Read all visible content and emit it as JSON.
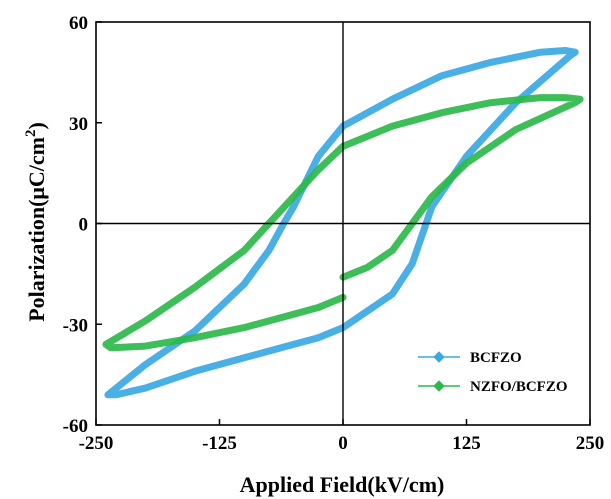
{
  "chart_data": {
    "type": "line",
    "title": "",
    "xlabel": "Applied Field(kV/cm)",
    "ylabel_main": "Polarization",
    "ylabel_unit_open": "(μC/cm",
    "ylabel_unit_sup": "2",
    "ylabel_unit_close": ")",
    "xlim": [
      -250,
      250
    ],
    "ylim": [
      -60,
      60
    ],
    "xticks": [
      -250,
      -125,
      0,
      125,
      250
    ],
    "yticks": [
      -60,
      -30,
      0,
      30,
      60
    ],
    "grid": false,
    "zero_lines": true,
    "legend_position": "lower-right",
    "series": [
      {
        "name": "BCFZO",
        "color": "#3aa8e2",
        "x": [
          0,
          25,
          50,
          70,
          90,
          125,
          175,
          230,
          235,
          225,
          200,
          150,
          100,
          50,
          25,
          0,
          -25,
          -50,
          -60,
          -75,
          -100,
          -150,
          -200,
          -238,
          -230,
          -200,
          -150,
          -100,
          -50,
          -25,
          0
        ],
        "y": [
          -31,
          -26,
          -21,
          -12,
          5,
          20,
          36,
          50,
          51,
          51.5,
          51,
          48,
          44,
          37,
          33,
          29,
          20,
          5,
          0,
          -8,
          -18,
          -32,
          -42,
          -51,
          -51,
          -49,
          -44,
          -40,
          -36,
          -34,
          -31
        ]
      },
      {
        "name": "NZFO/BCFZO",
        "color": "#2db84a",
        "x": [
          0,
          25,
          50,
          70,
          90,
          125,
          175,
          235,
          240,
          225,
          200,
          150,
          100,
          50,
          25,
          0,
          -25,
          -50,
          -75,
          -100,
          -150,
          -200,
          -240,
          -235,
          -200,
          -150,
          -100,
          -50,
          -25,
          0
        ],
        "y": [
          -16,
          -13,
          -8,
          0,
          8,
          18,
          28,
          36,
          37,
          37.5,
          37.5,
          36,
          33,
          29,
          26,
          23,
          16,
          8,
          0,
          -8,
          -19,
          -29,
          -36,
          -37,
          -36.5,
          -34,
          -31,
          -27,
          -25,
          -22
        ]
      }
    ]
  }
}
